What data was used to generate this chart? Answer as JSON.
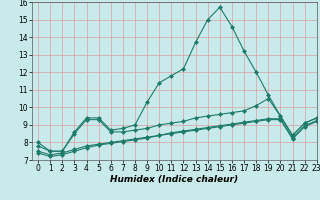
{
  "title": "",
  "xlabel": "Humidex (Indice chaleur)",
  "x": [
    0,
    1,
    2,
    3,
    4,
    5,
    6,
    7,
    8,
    9,
    10,
    11,
    12,
    13,
    14,
    15,
    16,
    17,
    18,
    19,
    20,
    21,
    22,
    23
  ],
  "line1": [
    8.0,
    7.5,
    7.5,
    8.6,
    9.4,
    9.4,
    8.7,
    8.8,
    9.0,
    10.3,
    11.4,
    11.8,
    12.2,
    13.7,
    15.0,
    15.7,
    14.6,
    13.2,
    12.0,
    10.7,
    9.5,
    8.4,
    9.1,
    9.4
  ],
  "line2": [
    7.8,
    7.5,
    7.5,
    8.5,
    9.3,
    9.3,
    8.6,
    8.6,
    8.7,
    8.8,
    9.0,
    9.1,
    9.2,
    9.4,
    9.5,
    9.6,
    9.7,
    9.8,
    10.1,
    10.5,
    9.5,
    8.4,
    9.1,
    9.4
  ],
  "line3": [
    7.5,
    7.3,
    7.4,
    7.6,
    7.8,
    7.9,
    8.0,
    8.1,
    8.2,
    8.3,
    8.4,
    8.55,
    8.65,
    8.75,
    8.85,
    8.95,
    9.05,
    9.15,
    9.25,
    9.35,
    9.35,
    8.25,
    8.95,
    9.25
  ],
  "line4": [
    7.4,
    7.2,
    7.3,
    7.5,
    7.7,
    7.85,
    7.95,
    8.05,
    8.15,
    8.25,
    8.4,
    8.5,
    8.6,
    8.7,
    8.8,
    8.9,
    9.0,
    9.1,
    9.2,
    9.3,
    9.3,
    8.2,
    8.9,
    9.2
  ],
  "line_color": "#1e7b6a",
  "bg_color": "#c8eaea",
  "grid_color_v": "#d8a0a0",
  "grid_color_h": "#d8c0c0",
  "ylim": [
    7,
    16
  ],
  "xlim": [
    -0.5,
    23
  ],
  "yticks": [
    7,
    8,
    9,
    10,
    11,
    12,
    13,
    14,
    15,
    16
  ],
  "xticks": [
    0,
    1,
    2,
    3,
    4,
    5,
    6,
    7,
    8,
    9,
    10,
    11,
    12,
    13,
    14,
    15,
    16,
    17,
    18,
    19,
    20,
    21,
    22,
    23
  ],
  "marker": "D",
  "marker_size": 2.0,
  "linewidth": 0.8,
  "xlabel_fontsize": 6.5,
  "tick_fontsize": 5.5
}
